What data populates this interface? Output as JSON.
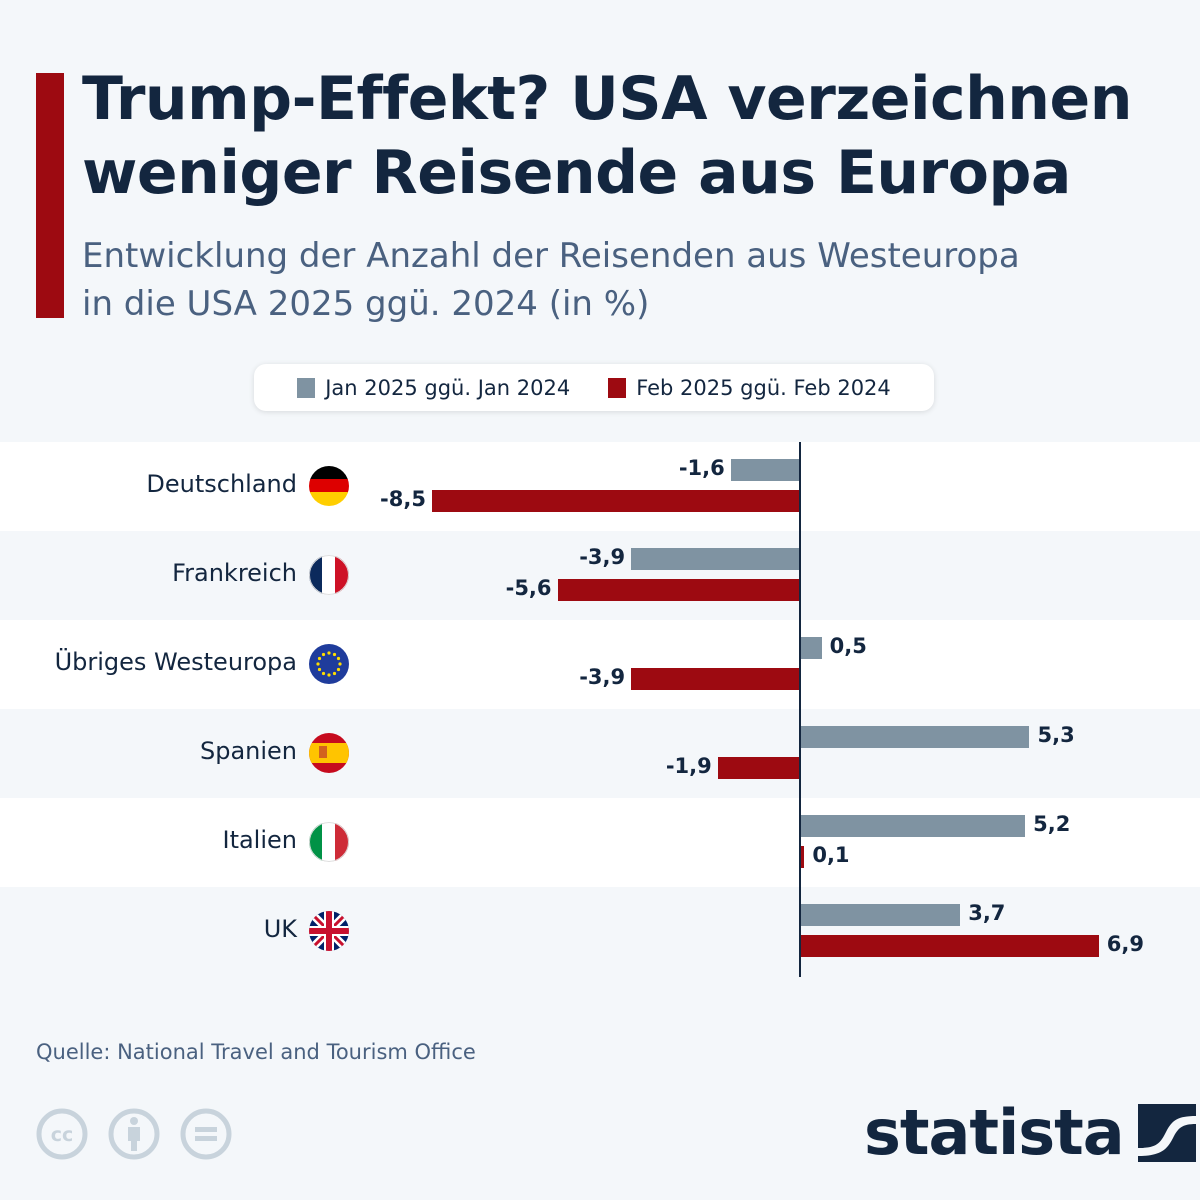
{
  "header": {
    "title": "Trump-Effekt? USA verzeichnen weniger Reisende aus Europa",
    "subtitle_line1": "Entwicklung der Anzahl der Reisenden aus Westeuropa",
    "subtitle_line2": "in die USA 2025 ggü. 2024 (in %)"
  },
  "colors": {
    "accent": "#9d0a11",
    "series_jan": "#7f93a2",
    "series_feb": "#9d0a11",
    "text": "#13263f"
  },
  "chart_data": {
    "type": "bar",
    "orientation": "horizontal",
    "title": "Trump-Effekt? USA verzeichnen weniger Reisende aus Europa",
    "subtitle": "Entwicklung der Anzahl der Reisenden aus Westeuropa in die USA 2025 ggü. 2024 (in %)",
    "xlabel": "",
    "ylabel": "",
    "categories": [
      "Deutschland",
      "Frankreich",
      "Übriges Westeuropa",
      "Spanien",
      "Italien",
      "UK"
    ],
    "flags": [
      "germany-flag-icon",
      "france-flag-icon",
      "eu-flag-icon",
      "spain-flag-icon",
      "italy-flag-icon",
      "uk-flag-icon"
    ],
    "series": [
      {
        "name": "Jan 2025 ggü. Jan 2024",
        "color": "#7f93a2",
        "values": [
          -1.6,
          -3.9,
          0.5,
          5.3,
          5.2,
          3.7
        ],
        "labels": [
          "-1,6",
          "-3,9",
          "0,5",
          "5,3",
          "5,2",
          "3,7"
        ]
      },
      {
        "name": "Feb 2025 ggü. Feb 2024",
        "color": "#9d0a11",
        "values": [
          -8.5,
          -5.6,
          -3.9,
          -1.9,
          0.1,
          6.9
        ],
        "labels": [
          "-8,5",
          "-5,6",
          "-3,9",
          "-1,9",
          "0,1",
          "6,9"
        ]
      }
    ],
    "xlim": [
      -8.5,
      6.9
    ],
    "grid": false,
    "legend_position": "top-center"
  },
  "footer": {
    "source": "Quelle: National Travel and Tourism Office",
    "license_icons": [
      "cc-icon",
      "attribution-icon",
      "no-derivatives-icon"
    ],
    "brand": "statista"
  }
}
